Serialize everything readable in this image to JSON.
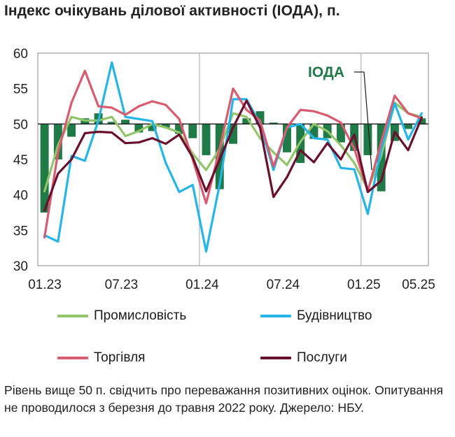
{
  "title": "Індекс очікувань ділової активності (ІОДА), п.",
  "note": "Рівень вище 50 п. свідчить про переважання позитивних оцінок. Опитування не проводилося з березня до травня 2022 року. Джерело: НБУ.",
  "colors": {
    "ioda": "#1f7a47",
    "industry": "#92c56a",
    "construction": "#26b5e8",
    "trade": "#d95b6f",
    "services": "#6a0f2e"
  },
  "chart_data": {
    "type": "line",
    "title": "Індекс очікувань ділової активності (ІОДА), п.",
    "x": [
      "01.23",
      "02.23",
      "03.23",
      "04.23",
      "05.23",
      "06.23",
      "07.23",
      "08.23",
      "09.23",
      "10.23",
      "11.23",
      "12.23",
      "01.24",
      "02.24",
      "03.24",
      "04.24",
      "05.24",
      "06.24",
      "07.24",
      "08.24",
      "09.24",
      "10.24",
      "11.24",
      "12.24",
      "01.25",
      "02.25",
      "03.25",
      "04.25",
      "05.25"
    ],
    "x_tick_labels": [
      "01.23",
      "07.23",
      "01.24",
      "07.24",
      "01.25",
      "05.25"
    ],
    "ylim": [
      30,
      60
    ],
    "y_ticks": [
      30,
      35,
      40,
      45,
      50,
      55,
      60
    ],
    "reference_line": 50,
    "annotation": "ІОДА",
    "series": [
      {
        "name": "ІОДА",
        "kind": "bar",
        "baseline": 50,
        "values": [
          37.5,
          45.0,
          48.2,
          50.8,
          51.5,
          50.3,
          50.6,
          48.8,
          49.0,
          49.5,
          48.6,
          48.0,
          45.6,
          40.8,
          47.2,
          50.8,
          51.8,
          50.2,
          46.0,
          44.5,
          47.9,
          48.0,
          47.4,
          46.2,
          45.6,
          40.5,
          47.6,
          49.3,
          50.8
        ]
      },
      {
        "name": "Промисловість",
        "kind": "line",
        "values": [
          40.5,
          47.0,
          51.0,
          50.5,
          50.5,
          51.0,
          48.3,
          49.0,
          50.0,
          49.5,
          48.8,
          45.8,
          43.5,
          46.5,
          51.5,
          51.0,
          48.0,
          46.0,
          44.2,
          47.5,
          50.0,
          49.0,
          47.0,
          44.5,
          40.8,
          45.5,
          53.0,
          51.5,
          51.0
        ]
      },
      {
        "name": "Будівництво",
        "kind": "line",
        "values": [
          34.3,
          33.4,
          45.5,
          44.8,
          50.5,
          58.7,
          51.0,
          50.7,
          50.4,
          44.5,
          40.4,
          41.4,
          32.0,
          41.5,
          53.5,
          53.5,
          50.0,
          43.5,
          49.5,
          50.0,
          48.0,
          47.8,
          43.8,
          43.6,
          37.3,
          46.5,
          52.9,
          47.8,
          51.5
        ]
      },
      {
        "name": "Торгівля",
        "kind": "line",
        "values": [
          34.0,
          46.0,
          53.0,
          57.5,
          52.5,
          52.3,
          51.3,
          52.5,
          53.2,
          52.7,
          50.7,
          45.0,
          38.8,
          46.5,
          55.0,
          52.0,
          50.5,
          44.0,
          49.5,
          52.0,
          51.8,
          51.2,
          50.2,
          46.5,
          40.5,
          47.5,
          54.0,
          51.5,
          50.8
        ]
      },
      {
        "name": "Послуги",
        "kind": "line",
        "values": [
          37.8,
          43.0,
          45.0,
          48.7,
          48.9,
          48.8,
          47.3,
          47.4,
          48.0,
          47.2,
          48.5,
          45.3,
          40.5,
          45.0,
          49.5,
          53.3,
          49.5,
          39.7,
          42.5,
          46.3,
          44.6,
          47.3,
          45.0,
          48.5,
          40.4,
          42.0,
          48.9,
          46.3,
          50.9
        ]
      }
    ],
    "legend": [
      "Промисловість",
      "Будівництво",
      "Торгівля",
      "Послуги"
    ],
    "legend_placement": "bottom"
  }
}
